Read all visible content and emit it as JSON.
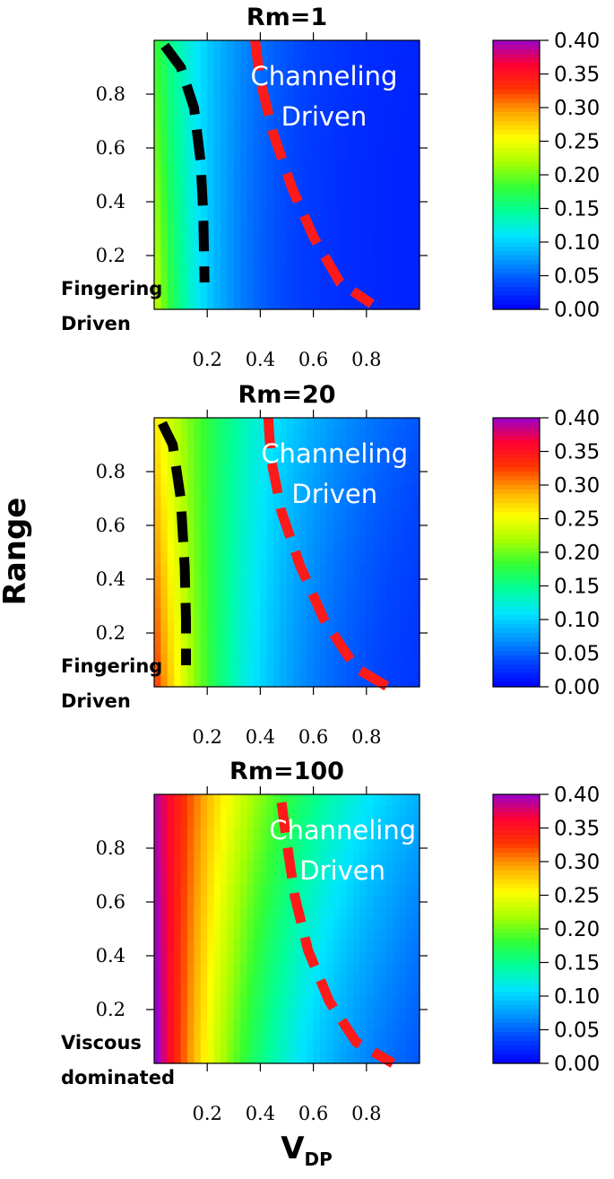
{
  "y_axis_label": "Range",
  "x_axis_label_main": "V",
  "x_axis_label_sub": "DP",
  "colormap": [
    "#0000ff",
    "#0044ff",
    "#0099ff",
    "#00e5ff",
    "#00ff99",
    "#33ff33",
    "#aaff00",
    "#ffff00",
    "#ffaa00",
    "#ff3300",
    "#ff0033",
    "#9900cc"
  ],
  "chart_data": [
    {
      "type": "heatmap",
      "title": "Rm=1",
      "xlim": [
        0,
        1
      ],
      "ylim": [
        0,
        1
      ],
      "x_ticks": [
        0.2,
        0.4,
        0.6,
        0.8
      ],
      "x_tick_labels": [
        "0.2",
        "0.4",
        "0.6",
        "0.8"
      ],
      "y_ticks": [
        0.2,
        0.4,
        0.6,
        0.8
      ],
      "y_tick_labels": [
        "0.2",
        "0.4",
        "0.6",
        "0.8"
      ],
      "colorbar": {
        "min": 0.0,
        "max": 0.4,
        "ticks": [
          "0.00",
          "0.05",
          "0.10",
          "0.15",
          "0.20",
          "0.25",
          "0.30",
          "0.35",
          "0.40"
        ]
      },
      "field": {
        "v0": 0.17,
        "k": 5.5,
        "y_coef": 0.05
      },
      "boundaries": [
        {
          "name": "fingering",
          "color": "#000000",
          "points": [
            [
              0.04,
              0.98
            ],
            [
              0.1,
              0.9
            ],
            [
              0.15,
              0.75
            ],
            [
              0.175,
              0.55
            ],
            [
              0.185,
              0.35
            ],
            [
              0.19,
              0.1
            ]
          ]
        },
        {
          "name": "channeling",
          "color": "#ff1a1a",
          "points": [
            [
              0.38,
              1.0
            ],
            [
              0.4,
              0.85
            ],
            [
              0.45,
              0.65
            ],
            [
              0.52,
              0.45
            ],
            [
              0.6,
              0.27
            ],
            [
              0.7,
              0.1
            ],
            [
              0.82,
              0.02
            ]
          ]
        }
      ],
      "annotations": [
        {
          "text": "Channeling",
          "style": "white",
          "x": 0.64,
          "y": 0.86
        },
        {
          "text": "Driven",
          "style": "white",
          "x": 0.64,
          "y": 0.71
        },
        {
          "text": "Fingering",
          "style": "black",
          "x": -0.04,
          "y": 0.08,
          "anchor": "start"
        },
        {
          "text": "Driven",
          "style": "black",
          "x": -0.04,
          "y": -0.05,
          "anchor": "start"
        }
      ]
    },
    {
      "type": "heatmap",
      "title": "Rm=20",
      "xlim": [
        0,
        1
      ],
      "ylim": [
        0,
        1
      ],
      "x_ticks": [
        0.2,
        0.4,
        0.6,
        0.8
      ],
      "x_tick_labels": [
        "0.2",
        "0.4",
        "0.6",
        "0.8"
      ],
      "y_ticks": [
        0.2,
        0.4,
        0.6,
        0.8
      ],
      "y_tick_labels": [
        "0.2",
        "0.4",
        "0.6",
        "0.8"
      ],
      "colorbar": {
        "min": 0.0,
        "max": 0.4,
        "ticks": [
          "0.00",
          "0.05",
          "0.10",
          "0.15",
          "0.20",
          "0.25",
          "0.30",
          "0.35",
          "0.40"
        ]
      },
      "field": {
        "v0": 0.25,
        "k": 3.3,
        "y_coef": 0.07
      },
      "boundaries": [
        {
          "name": "fingering",
          "color": "#000000",
          "points": [
            [
              0.03,
              0.98
            ],
            [
              0.07,
              0.9
            ],
            [
              0.1,
              0.7
            ],
            [
              0.115,
              0.45
            ],
            [
              0.12,
              0.25
            ],
            [
              0.12,
              0.08
            ]
          ]
        },
        {
          "name": "channeling",
          "color": "#ff1a1a",
          "points": [
            [
              0.43,
              1.0
            ],
            [
              0.44,
              0.85
            ],
            [
              0.48,
              0.65
            ],
            [
              0.55,
              0.45
            ],
            [
              0.64,
              0.25
            ],
            [
              0.76,
              0.07
            ],
            [
              0.88,
              0.0
            ]
          ]
        }
      ],
      "annotations": [
        {
          "text": "Channeling",
          "style": "white",
          "x": 0.68,
          "y": 0.86
        },
        {
          "text": "Driven",
          "style": "white",
          "x": 0.68,
          "y": 0.71
        },
        {
          "text": "Fingering",
          "style": "black",
          "x": -0.04,
          "y": 0.08,
          "anchor": "start"
        },
        {
          "text": "Driven",
          "style": "black",
          "x": -0.04,
          "y": -0.05,
          "anchor": "start"
        }
      ]
    },
    {
      "type": "heatmap",
      "title": "Rm=100",
      "xlim": [
        0,
        1
      ],
      "ylim": [
        0,
        1
      ],
      "x_ticks": [
        0.2,
        0.4,
        0.6,
        0.8
      ],
      "x_tick_labels": [
        "0.2",
        "0.4",
        "0.6",
        "0.8"
      ],
      "y_ticks": [
        0.2,
        0.4,
        0.6,
        0.8
      ],
      "y_tick_labels": [
        "0.2",
        "0.4",
        "0.6",
        "0.8"
      ],
      "colorbar": {
        "min": 0.0,
        "max": 0.4,
        "ticks": [
          "0.00",
          "0.05",
          "0.10",
          "0.15",
          "0.20",
          "0.25",
          "0.30",
          "0.35",
          "0.40"
        ]
      },
      "field": {
        "v0": 0.38,
        "k": 2.6,
        "y_coef": 0.02
      },
      "boundaries": [
        {
          "name": "channeling",
          "color": "#ff1a1a",
          "points": [
            [
              0.48,
              0.97
            ],
            [
              0.5,
              0.82
            ],
            [
              0.53,
              0.62
            ],
            [
              0.58,
              0.42
            ],
            [
              0.66,
              0.23
            ],
            [
              0.76,
              0.08
            ],
            [
              0.9,
              0.0
            ]
          ]
        }
      ],
      "annotations": [
        {
          "text": "Channeling",
          "style": "white",
          "x": 0.71,
          "y": 0.86
        },
        {
          "text": "Driven",
          "style": "white",
          "x": 0.71,
          "y": 0.71
        },
        {
          "text": "Viscous",
          "style": "black",
          "x": -0.04,
          "y": 0.08,
          "anchor": "start"
        },
        {
          "text": "dominated",
          "style": "black",
          "x": -0.04,
          "y": -0.05,
          "anchor": "start"
        }
      ]
    }
  ]
}
